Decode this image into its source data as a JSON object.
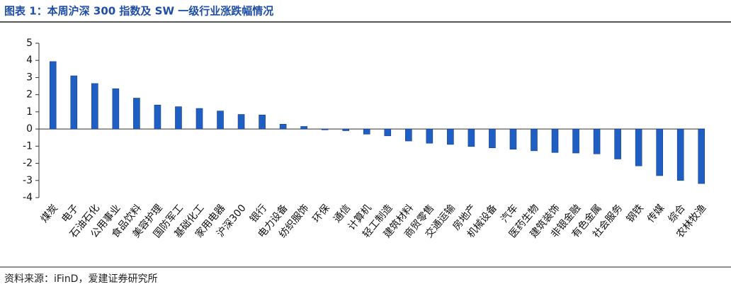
{
  "chart_data": {
    "type": "bar",
    "title": "图表 1：本周沪深 300 指数及 SW 一级行业涨跌幅情况",
    "source": "资料来源：iFinD，爱建证券研究所",
    "categories": [
      "煤炭",
      "电子",
      "石油石化",
      "公用事业",
      "食品饮料",
      "美容护理",
      "国防军工",
      "基础化工",
      "家用电器",
      "沪深300",
      "银行",
      "电力设备",
      "纺织服饰",
      "环保",
      "通信",
      "计算机",
      "轻工制造",
      "建筑材料",
      "商贸零售",
      "交通运输",
      "房地产",
      "机械设备",
      "汽车",
      "医药生物",
      "建筑装饰",
      "非银金融",
      "有色金属",
      "社会服务",
      "钢铁",
      "传媒",
      "综合",
      "农林牧渔"
    ],
    "values": [
      3.93,
      3.1,
      2.65,
      2.35,
      1.8,
      1.4,
      1.3,
      1.2,
      1.05,
      0.85,
      0.82,
      0.28,
      0.15,
      -0.05,
      -0.1,
      -0.3,
      -0.4,
      -0.7,
      -0.83,
      -0.9,
      -1.02,
      -1.1,
      -1.18,
      -1.27,
      -1.37,
      -1.4,
      -1.45,
      -1.75,
      -2.15,
      -2.72,
      -3.0,
      -3.18
    ],
    "color": "#1f5fc4",
    "ylim": [
      -4,
      5
    ],
    "yticks": [
      -4,
      -3,
      -2,
      -1,
      0,
      1,
      2,
      3,
      4,
      5
    ]
  }
}
